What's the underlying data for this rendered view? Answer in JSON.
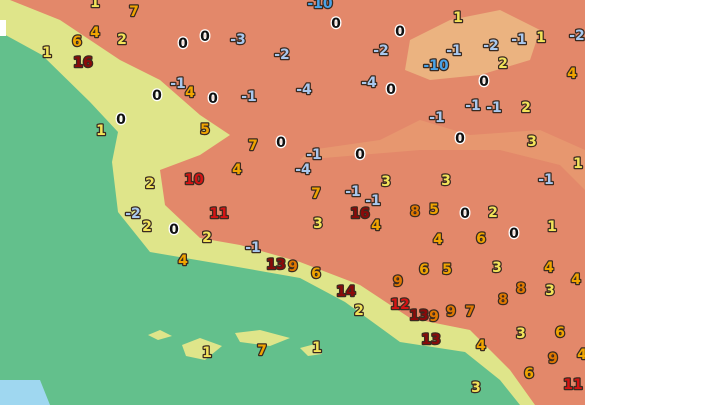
{
  "labels": [
    {
      "text": "1",
      "color": "#f2e35a"
    },
    {
      "text": "7",
      "color": "#f0a400"
    },
    {
      "text": "-10",
      "color": "#4aa3e8"
    },
    {
      "text": "0",
      "color": "#111111"
    },
    {
      "text": "1",
      "color": "#f2e35a"
    },
    {
      "text": "6",
      "color": "#f0a400"
    },
    {
      "text": "4",
      "color": "#f0a400"
    },
    {
      "text": "2",
      "color": "#f2e35a"
    },
    {
      "text": "0",
      "color": "#111111"
    },
    {
      "text": "0",
      "color": "#111111"
    },
    {
      "text": "-3",
      "color": "#a9c8ee"
    },
    {
      "text": "0",
      "color": "#111111"
    },
    {
      "text": "-2",
      "color": "#a9c8ee"
    },
    {
      "text": "-2",
      "color": "#a9c8ee"
    },
    {
      "text": "-1",
      "color": "#a9c8ee"
    },
    {
      "text": "-2",
      "color": "#a9c8ee"
    },
    {
      "text": "-1",
      "color": "#a9c8ee"
    },
    {
      "text": "1",
      "color": "#f2e35a"
    },
    {
      "text": "-2",
      "color": "#a9c8ee"
    },
    {
      "text": "1",
      "color": "#f2e35a"
    },
    {
      "text": "16",
      "color": "#8b0a0a"
    },
    {
      "text": "-10",
      "color": "#4aa3e8"
    },
    {
      "text": "2",
      "color": "#f2e35a"
    },
    {
      "text": "4",
      "color": "#f0a400"
    },
    {
      "text": "-1",
      "color": "#a9c8ee"
    },
    {
      "text": "0",
      "color": "#111111"
    },
    {
      "text": "4",
      "color": "#f0a400"
    },
    {
      "text": "0",
      "color": "#111111"
    },
    {
      "text": "-1",
      "color": "#a9c8ee"
    },
    {
      "text": "-4",
      "color": "#a9c8ee"
    },
    {
      "text": "-4",
      "color": "#a9c8ee"
    },
    {
      "text": "0",
      "color": "#111111"
    },
    {
      "text": "0",
      "color": "#111111"
    },
    {
      "text": "-1",
      "color": "#a9c8ee"
    },
    {
      "text": "-1",
      "color": "#a9c8ee"
    },
    {
      "text": "2",
      "color": "#f2e35a"
    },
    {
      "text": "-1",
      "color": "#a9c8ee"
    },
    {
      "text": "0",
      "color": "#111111"
    },
    {
      "text": "1",
      "color": "#f2e35a"
    },
    {
      "text": "5",
      "color": "#f0a400"
    },
    {
      "text": "0",
      "color": "#111111"
    },
    {
      "text": "3",
      "color": "#f2e35a"
    },
    {
      "text": "7",
      "color": "#f0a400"
    },
    {
      "text": "0",
      "color": "#111111"
    },
    {
      "text": "-1",
      "color": "#a9c8ee"
    },
    {
      "text": "0",
      "color": "#111111"
    },
    {
      "text": "1",
      "color": "#f2e35a"
    },
    {
      "text": "4",
      "color": "#f0a400"
    },
    {
      "text": "-4",
      "color": "#a9c8ee"
    },
    {
      "text": "10",
      "color": "#d41414"
    },
    {
      "text": "2",
      "color": "#f2e35a"
    },
    {
      "text": "3",
      "color": "#f2e35a"
    },
    {
      "text": "3",
      "color": "#f2e35a"
    },
    {
      "text": "-1",
      "color": "#a9c8ee"
    },
    {
      "text": "7",
      "color": "#f0a400"
    },
    {
      "text": "-1",
      "color": "#a9c8ee"
    },
    {
      "text": "-1",
      "color": "#a9c8ee"
    },
    {
      "text": "-2",
      "color": "#a9c8ee"
    },
    {
      "text": "11",
      "color": "#d41414"
    },
    {
      "text": "16",
      "color": "#8b0a0a"
    },
    {
      "text": "8",
      "color": "#e07800"
    },
    {
      "text": "5",
      "color": "#f0a400"
    },
    {
      "text": "0",
      "color": "#111111"
    },
    {
      "text": "2",
      "color": "#f2e35a"
    },
    {
      "text": "2",
      "color": "#f2e35a"
    },
    {
      "text": "3",
      "color": "#f2e35a"
    },
    {
      "text": "4",
      "color": "#f0a400"
    },
    {
      "text": "1",
      "color": "#f2e35a"
    },
    {
      "text": "0",
      "color": "#111111"
    },
    {
      "text": "2",
      "color": "#f2e35a"
    },
    {
      "text": "0",
      "color": "#111111"
    },
    {
      "text": "4",
      "color": "#f0a400"
    },
    {
      "text": "6",
      "color": "#f0a400"
    },
    {
      "text": "-1",
      "color": "#a9c8ee"
    },
    {
      "text": "4",
      "color": "#f0a400"
    },
    {
      "text": "13",
      "color": "#8b0a0a"
    },
    {
      "text": "9",
      "color": "#e07800"
    },
    {
      "text": "6",
      "color": "#f0a400"
    },
    {
      "text": "6",
      "color": "#f0a400"
    },
    {
      "text": "5",
      "color": "#f0a400"
    },
    {
      "text": "3",
      "color": "#f2e35a"
    },
    {
      "text": "4",
      "color": "#f0a400"
    },
    {
      "text": "4",
      "color": "#f0a400"
    },
    {
      "text": "9",
      "color": "#e07800"
    },
    {
      "text": "8",
      "color": "#e07800"
    },
    {
      "text": "3",
      "color": "#f2e35a"
    },
    {
      "text": "14",
      "color": "#8b0a0a"
    },
    {
      "text": "8",
      "color": "#e07800"
    },
    {
      "text": "12",
      "color": "#d41414"
    },
    {
      "text": "2",
      "color": "#f2e35a"
    },
    {
      "text": "13",
      "color": "#8b0a0a"
    },
    {
      "text": "9",
      "color": "#e07800"
    },
    {
      "text": "9",
      "color": "#e07800"
    },
    {
      "text": "7",
      "color": "#e07800"
    },
    {
      "text": "6",
      "color": "#f0a400"
    },
    {
      "text": "3",
      "color": "#f2e35a"
    },
    {
      "text": "13",
      "color": "#8b0a0a"
    },
    {
      "text": "4",
      "color": "#f0a400"
    },
    {
      "text": "1",
      "color": "#f2e35a"
    },
    {
      "text": "7",
      "color": "#f0a400"
    },
    {
      "text": "1",
      "color": "#f2e35a"
    },
    {
      "text": "9",
      "color": "#e07800"
    },
    {
      "text": "6",
      "color": "#f0a400"
    },
    {
      "text": "3",
      "color": "#f2e35a"
    },
    {
      "text": "11",
      "color": "#d41414"
    },
    {
      "text": "4",
      "color": "#f0a400"
    }
  ]
}
